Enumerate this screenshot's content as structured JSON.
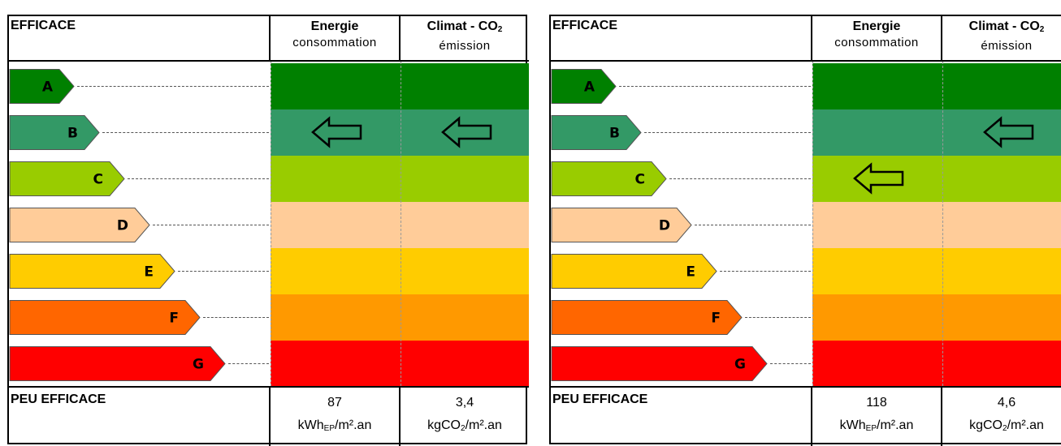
{
  "chart_data": [
    {
      "type": "table",
      "header": {
        "efficace": "EFFICACE",
        "energie_title": "Energie",
        "energie_sub": "consommation",
        "climat_title_main": "Climat - CO",
        "climat_title_sub": "2",
        "climat_sub": "émission"
      },
      "classes": [
        "A",
        "B",
        "C",
        "D",
        "E",
        "F",
        "G"
      ],
      "energie_class": "B",
      "climat_class": "B",
      "footer": {
        "peu_efficace": "PEU EFFICACE",
        "energie_value": "87",
        "energie_unit_a": "kWh",
        "energie_unit_sub": "EP",
        "energie_unit_b": "/m².an",
        "climat_value": "3,4",
        "climat_unit_a": "kgCO",
        "climat_unit_sub": "2",
        "climat_unit_b": "/m².an"
      }
    },
    {
      "type": "table",
      "header": {
        "efficace": "EFFICACE",
        "energie_title": "Energie",
        "energie_sub": "consommation",
        "climat_title_main": "Climat - CO",
        "climat_title_sub": "2",
        "climat_sub": "émission"
      },
      "classes": [
        "A",
        "B",
        "C",
        "D",
        "E",
        "F",
        "G"
      ],
      "energie_class": "C",
      "climat_class": "B",
      "footer": {
        "peu_efficace": "PEU EFFICACE",
        "energie_value": "118",
        "energie_unit_a": "kWh",
        "energie_unit_sub": "EP",
        "energie_unit_b": "/m².an",
        "climat_value": "4,6",
        "climat_unit_a": "kgCO",
        "climat_unit_sub": "2",
        "climat_unit_b": "/m².an"
      }
    }
  ],
  "colors": {
    "A": "#008000",
    "B": "#339966",
    "C": "#99cc00",
    "D": "#ffcc99",
    "E": "#ffcc00",
    "F": "#ff9900",
    "G": "#ff0000",
    "label_F": "#ff6600"
  }
}
